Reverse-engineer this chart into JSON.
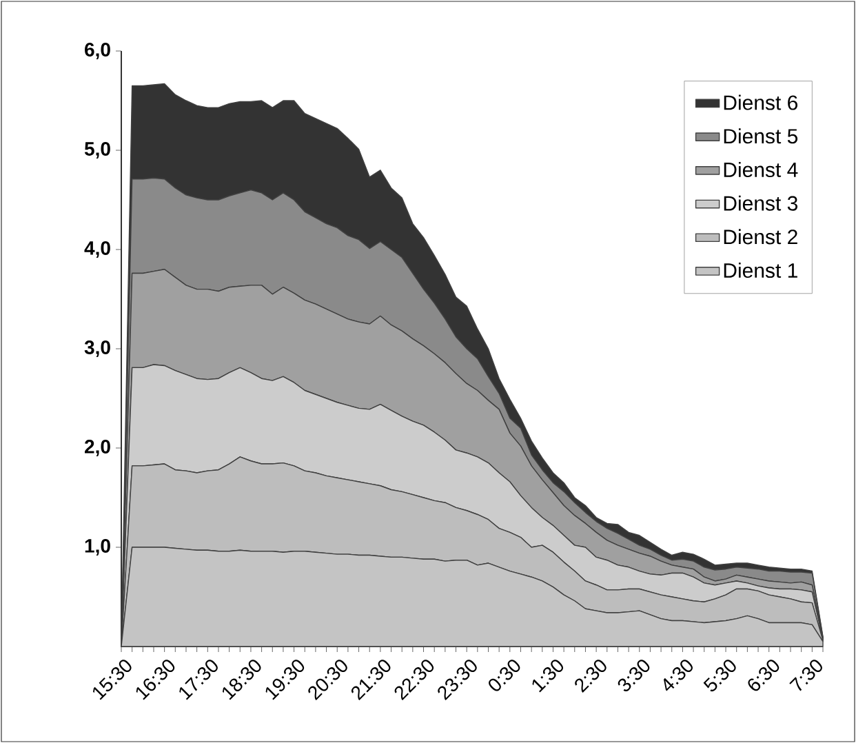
{
  "chart_data": {
    "type": "area",
    "stacked": true,
    "legend": "top right",
    "categories": [
      "15:30",
      null,
      null,
      null,
      "16:30",
      null,
      null,
      null,
      "17:30",
      null,
      null,
      null,
      "18:30",
      null,
      null,
      null,
      "19:30",
      null,
      null,
      null,
      "20:30",
      null,
      null,
      null,
      "21:30",
      null,
      null,
      null,
      "22:30",
      null,
      null,
      null,
      "23:30",
      null,
      null,
      null,
      "0:30",
      null,
      null,
      null,
      "1:30",
      null,
      null,
      null,
      "2:30",
      null,
      null,
      null,
      "3:30",
      null,
      null,
      null,
      "4:30",
      null,
      null,
      null,
      "5:30",
      null,
      null,
      null,
      "6:30",
      null,
      null,
      null,
      "7:30",
      null
    ],
    "ylim": [
      0,
      6
    ],
    "yticks": [
      {
        "value": 1,
        "label": "1,0"
      },
      {
        "value": 2,
        "label": "2,0"
      },
      {
        "value": 3,
        "label": "3,0"
      },
      {
        "value": 4,
        "label": "4,0"
      },
      {
        "value": 5,
        "label": "5,0"
      },
      {
        "value": 6,
        "label": "6,0"
      }
    ],
    "series": [
      {
        "name": "Dienst 1",
        "color": "#c4c4c4",
        "values": [
          0,
          1.0,
          1.0,
          1.0,
          1.0,
          0.99,
          0.98,
          0.97,
          0.97,
          0.96,
          0.96,
          0.97,
          0.96,
          0.96,
          0.96,
          0.95,
          0.96,
          0.96,
          0.95,
          0.94,
          0.93,
          0.93,
          0.92,
          0.92,
          0.91,
          0.9,
          0.9,
          0.89,
          0.88,
          0.88,
          0.86,
          0.87,
          0.87,
          0.82,
          0.84,
          0.8,
          0.76,
          0.73,
          0.7,
          0.66,
          0.6,
          0.52,
          0.46,
          0.38,
          0.36,
          0.34,
          0.34,
          0.35,
          0.36,
          0.32,
          0.28,
          0.26,
          0.26,
          0.25,
          0.24,
          0.25,
          0.26,
          0.28,
          0.31,
          0.28,
          0.24,
          0.24,
          0.24,
          0.24,
          0.22,
          0.05
        ]
      },
      {
        "name": "Dienst 2",
        "color": "#bdbdbd",
        "values": [
          0,
          0.82,
          0.82,
          0.83,
          0.84,
          0.79,
          0.79,
          0.78,
          0.8,
          0.82,
          0.88,
          0.94,
          0.91,
          0.88,
          0.88,
          0.9,
          0.86,
          0.81,
          0.8,
          0.78,
          0.77,
          0.75,
          0.74,
          0.72,
          0.71,
          0.68,
          0.66,
          0.64,
          0.62,
          0.59,
          0.59,
          0.53,
          0.5,
          0.51,
          0.44,
          0.39,
          0.39,
          0.37,
          0.3,
          0.36,
          0.35,
          0.33,
          0.3,
          0.28,
          0.26,
          0.23,
          0.23,
          0.23,
          0.22,
          0.23,
          0.24,
          0.24,
          0.22,
          0.21,
          0.21,
          0.23,
          0.26,
          0.3,
          0.27,
          0.28,
          0.28,
          0.26,
          0.24,
          0.21,
          0.22,
          0.01
        ]
      },
      {
        "name": "Dienst 3",
        "color": "#cccccc",
        "values": [
          0,
          0.99,
          0.99,
          1.01,
          0.99,
          1.0,
          0.97,
          0.95,
          0.92,
          0.92,
          0.92,
          0.9,
          0.89,
          0.86,
          0.84,
          0.87,
          0.84,
          0.81,
          0.79,
          0.78,
          0.76,
          0.75,
          0.74,
          0.75,
          0.82,
          0.8,
          0.76,
          0.74,
          0.73,
          0.69,
          0.63,
          0.58,
          0.58,
          0.58,
          0.57,
          0.56,
          0.51,
          0.42,
          0.4,
          0.28,
          0.27,
          0.27,
          0.26,
          0.34,
          0.28,
          0.3,
          0.25,
          0.22,
          0.18,
          0.18,
          0.2,
          0.24,
          0.26,
          0.24,
          0.19,
          0.14,
          0.12,
          0.08,
          0.06,
          0.05,
          0.07,
          0.08,
          0.1,
          0.12,
          0.11,
          0.01
        ]
      },
      {
        "name": "Dienst 4",
        "color": "#a0a0a0",
        "values": [
          0,
          0.95,
          0.95,
          0.94,
          0.97,
          0.94,
          0.9,
          0.9,
          0.91,
          0.88,
          0.86,
          0.82,
          0.88,
          0.94,
          0.87,
          0.9,
          0.9,
          0.91,
          0.91,
          0.9,
          0.89,
          0.87,
          0.87,
          0.86,
          0.89,
          0.86,
          0.86,
          0.83,
          0.8,
          0.79,
          0.78,
          0.77,
          0.7,
          0.67,
          0.63,
          0.64,
          0.49,
          0.5,
          0.42,
          0.38,
          0.33,
          0.3,
          0.3,
          0.24,
          0.25,
          0.2,
          0.2,
          0.18,
          0.18,
          0.18,
          0.14,
          0.08,
          0.06,
          0.08,
          0.06,
          0.04,
          0.04,
          0.06,
          0.06,
          0.07,
          0.07,
          0.07,
          0.06,
          0.08,
          0.07,
          0.01
        ]
      },
      {
        "name": "Dienst 5",
        "color": "#8a8a8a",
        "values": [
          0,
          0.95,
          0.95,
          0.94,
          0.91,
          0.9,
          0.91,
          0.92,
          0.9,
          0.92,
          0.92,
          0.94,
          0.96,
          0.93,
          0.95,
          0.95,
          0.94,
          0.89,
          0.87,
          0.86,
          0.87,
          0.84,
          0.83,
          0.76,
          0.75,
          0.76,
          0.74,
          0.66,
          0.57,
          0.51,
          0.44,
          0.37,
          0.35,
          0.32,
          0.24,
          0.16,
          0.15,
          0.18,
          0.11,
          0.1,
          0.1,
          0.14,
          0.13,
          0.11,
          0.11,
          0.12,
          0.12,
          0.1,
          0.08,
          0.07,
          0.06,
          0.05,
          0.08,
          0.08,
          0.1,
          0.11,
          0.1,
          0.08,
          0.09,
          0.1,
          0.1,
          0.11,
          0.11,
          0.1,
          0.12,
          0.01
        ]
      },
      {
        "name": "Dienst 6",
        "color": "#333333",
        "values": [
          0,
          0.94,
          0.94,
          0.94,
          0.96,
          0.94,
          0.95,
          0.93,
          0.93,
          0.93,
          0.93,
          0.92,
          0.89,
          0.93,
          0.93,
          0.93,
          1.0,
          0.99,
          1.0,
          1.01,
          1.0,
          0.98,
          0.91,
          0.72,
          0.72,
          0.62,
          0.6,
          0.5,
          0.52,
          0.48,
          0.45,
          0.4,
          0.43,
          0.3,
          0.28,
          0.15,
          0.19,
          0.1,
          0.14,
          0.12,
          0.1,
          0.09,
          0.05,
          0.07,
          0.04,
          0.05,
          0.09,
          0.07,
          0.1,
          0.07,
          0.06,
          0.05,
          0.07,
          0.07,
          0.08,
          0.05,
          0.05,
          0.04,
          0.05,
          0.04,
          0.04,
          0.03,
          0.03,
          0.03,
          0.02,
          0.01
        ]
      }
    ]
  }
}
